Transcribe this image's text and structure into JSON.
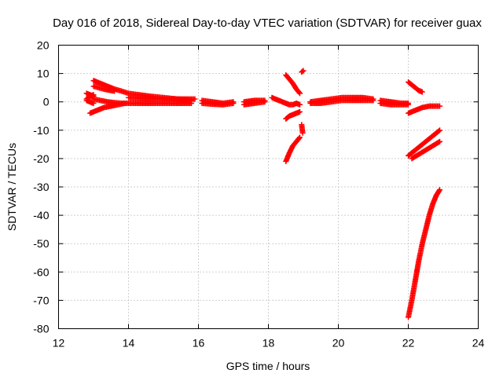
{
  "chart_data": {
    "type": "scatter",
    "title": "Day 016 of 2018, Sidereal Day-to-day VTEC variation (SDTVAR) for receiver guax",
    "xlabel": "GPS time / hours",
    "ylabel": "SDTVAR / TECUs",
    "xlim": [
      12,
      24
    ],
    "ylim": [
      -80,
      20
    ],
    "xticks": [
      "12",
      "14",
      "16",
      "18",
      "20",
      "22",
      "24"
    ],
    "yticks": [
      "20",
      "10",
      "0",
      "-10",
      "-20",
      "-30",
      "-40",
      "-50",
      "-60",
      "-70",
      "-80"
    ],
    "grid": true,
    "marker": "plus",
    "color": "#ff0000",
    "segments": [
      {
        "x": [
          12.8,
          12.9,
          13.0
        ],
        "y": [
          1.0,
          2.0,
          2.5
        ]
      },
      {
        "x": [
          12.8,
          12.9,
          13.0
        ],
        "y": [
          0.5,
          0.0,
          -0.5
        ]
      },
      {
        "x": [
          12.8,
          12.9,
          13.0
        ],
        "y": [
          3.0,
          2.5,
          2.0
        ]
      },
      {
        "x": [
          13.0,
          13.2,
          13.4,
          13.6,
          13.8,
          14.0,
          14.3,
          14.6,
          15.0,
          15.4,
          15.8
        ],
        "y": [
          7.5,
          6.5,
          5.5,
          4.5,
          3.8,
          3.0,
          2.5,
          2.0,
          1.5,
          1.0,
          0.5
        ]
      },
      {
        "x": [
          13.0,
          13.2,
          13.4,
          13.6
        ],
        "y": [
          5.5,
          4.8,
          4.2,
          3.8
        ]
      },
      {
        "x": [
          13.0,
          13.2,
          13.4,
          13.6,
          13.8,
          14.0,
          14.3,
          14.6,
          15.0,
          15.4,
          15.8
        ],
        "y": [
          1.0,
          0.5,
          0.0,
          -0.3,
          -0.5,
          -0.5,
          -0.5,
          -0.5,
          -0.5,
          -0.5,
          -0.5
        ]
      },
      {
        "x": [
          12.9,
          13.1,
          13.3,
          13.5,
          13.7,
          13.9
        ],
        "y": [
          -4.0,
          -3.0,
          -2.0,
          -1.5,
          -1.0,
          -0.5
        ]
      },
      {
        "x": [
          14.0,
          14.4,
          14.8,
          15.2,
          15.6,
          15.9
        ],
        "y": [
          1.5,
          1.2,
          1.0,
          1.0,
          1.0,
          1.0
        ]
      },
      {
        "x": [
          16.1,
          16.4,
          16.7,
          17.0
        ],
        "y": [
          0.5,
          0.0,
          -0.5,
          0.0
        ]
      },
      {
        "x": [
          16.1,
          16.4,
          16.7,
          17.0
        ],
        "y": [
          -0.5,
          -0.8,
          -1.0,
          -0.5
        ]
      },
      {
        "x": [
          17.3,
          17.6,
          17.9
        ],
        "y": [
          0.0,
          0.5,
          0.5
        ]
      },
      {
        "x": [
          17.3,
          17.6,
          17.9
        ],
        "y": [
          -1.0,
          -0.5,
          0.0
        ]
      },
      {
        "x": [
          18.1,
          18.3,
          18.5
        ],
        "y": [
          1.5,
          0.5,
          -0.5
        ]
      },
      {
        "x": [
          18.5,
          18.6,
          18.7,
          18.8,
          18.9
        ],
        "y": [
          9.5,
          8.0,
          6.5,
          4.5,
          3.0
        ]
      },
      {
        "x": [
          18.5,
          18.6,
          18.7,
          18.8,
          18.9
        ],
        "y": [
          -0.5,
          -1.0,
          -1.0,
          -0.5,
          -1.0
        ]
      },
      {
        "x": [
          18.5,
          18.6,
          18.7,
          18.8,
          18.9
        ],
        "y": [
          -6.0,
          -5.0,
          -4.5,
          -4.0,
          -3.5
        ]
      },
      {
        "x": [
          18.5,
          18.6,
          18.7,
          18.8,
          18.9
        ],
        "y": [
          -21.0,
          -18.0,
          -15.5,
          -14.0,
          -12.5
        ]
      },
      {
        "x": [
          18.95,
          19.0
        ],
        "y": [
          10.5,
          11.0
        ]
      },
      {
        "x": [
          18.95,
          18.98
        ],
        "y": [
          -8.0,
          -11.0
        ]
      },
      {
        "x": [
          19.2,
          19.5,
          19.8,
          20.1,
          20.4,
          20.7,
          21.0
        ],
        "y": [
          0.0,
          0.5,
          1.0,
          1.5,
          1.5,
          1.5,
          1.0
        ]
      },
      {
        "x": [
          19.2,
          19.5,
          19.8,
          20.1,
          20.4,
          20.7,
          21.0
        ],
        "y": [
          -0.5,
          -0.5,
          0.0,
          0.5,
          0.5,
          0.5,
          0.5
        ]
      },
      {
        "x": [
          21.2,
          21.5,
          21.8,
          22.0
        ],
        "y": [
          0.5,
          0.0,
          -0.5,
          -0.5
        ]
      },
      {
        "x": [
          21.2,
          21.5,
          21.8,
          22.0
        ],
        "y": [
          -0.5,
          -1.0,
          -1.0,
          -1.0
        ]
      },
      {
        "x": [
          22.0,
          22.1,
          22.2,
          22.3,
          22.4
        ],
        "y": [
          7.0,
          6.0,
          5.0,
          4.0,
          3.5
        ]
      },
      {
        "x": [
          22.0,
          22.2,
          22.4,
          22.6,
          22.8,
          22.9
        ],
        "y": [
          -4.0,
          -3.0,
          -2.0,
          -1.5,
          -1.5,
          -1.5
        ]
      },
      {
        "x": [
          22.0,
          22.2,
          22.4,
          22.6,
          22.8,
          22.9
        ],
        "y": [
          -19.0,
          -17.0,
          -15.0,
          -13.0,
          -11.0,
          -10.0
        ]
      },
      {
        "x": [
          22.1,
          22.3,
          22.5,
          22.7,
          22.9
        ],
        "y": [
          -20.0,
          -18.5,
          -17.0,
          -15.5,
          -14.0
        ]
      },
      {
        "x": [
          22.0,
          22.1,
          22.2,
          22.3,
          22.4,
          22.5,
          22.6,
          22.7,
          22.8,
          22.9
        ],
        "y": [
          -76.0,
          -70.0,
          -63.0,
          -56.0,
          -50.0,
          -45.0,
          -40.0,
          -36.0,
          -33.0,
          -31.0
        ]
      }
    ]
  }
}
